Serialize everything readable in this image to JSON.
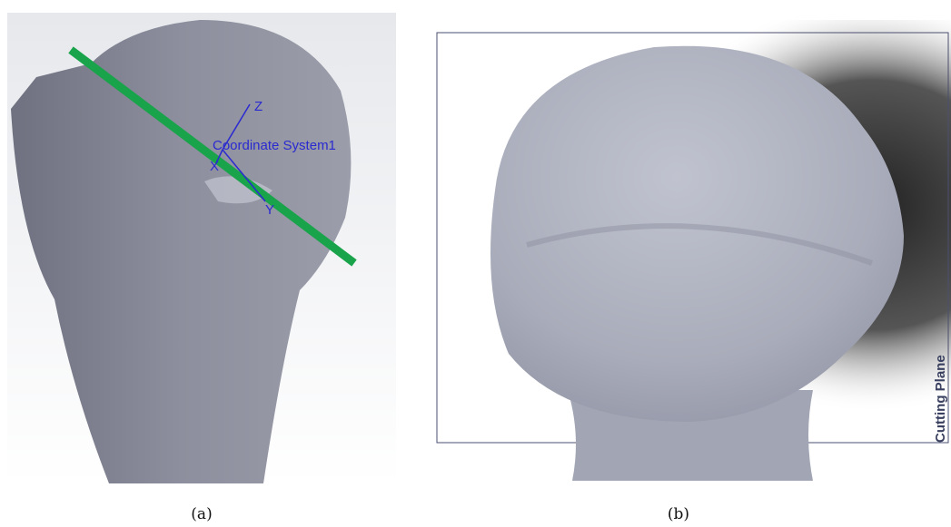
{
  "panel_a": {
    "axis_labels": {
      "z": "Z",
      "x": "X",
      "y": "Y"
    },
    "coordinate_system": "Coordinate System1",
    "caption": "(a)"
  },
  "panel_b": {
    "plane_label": "Cutting Plane",
    "caption": "(b)"
  }
}
